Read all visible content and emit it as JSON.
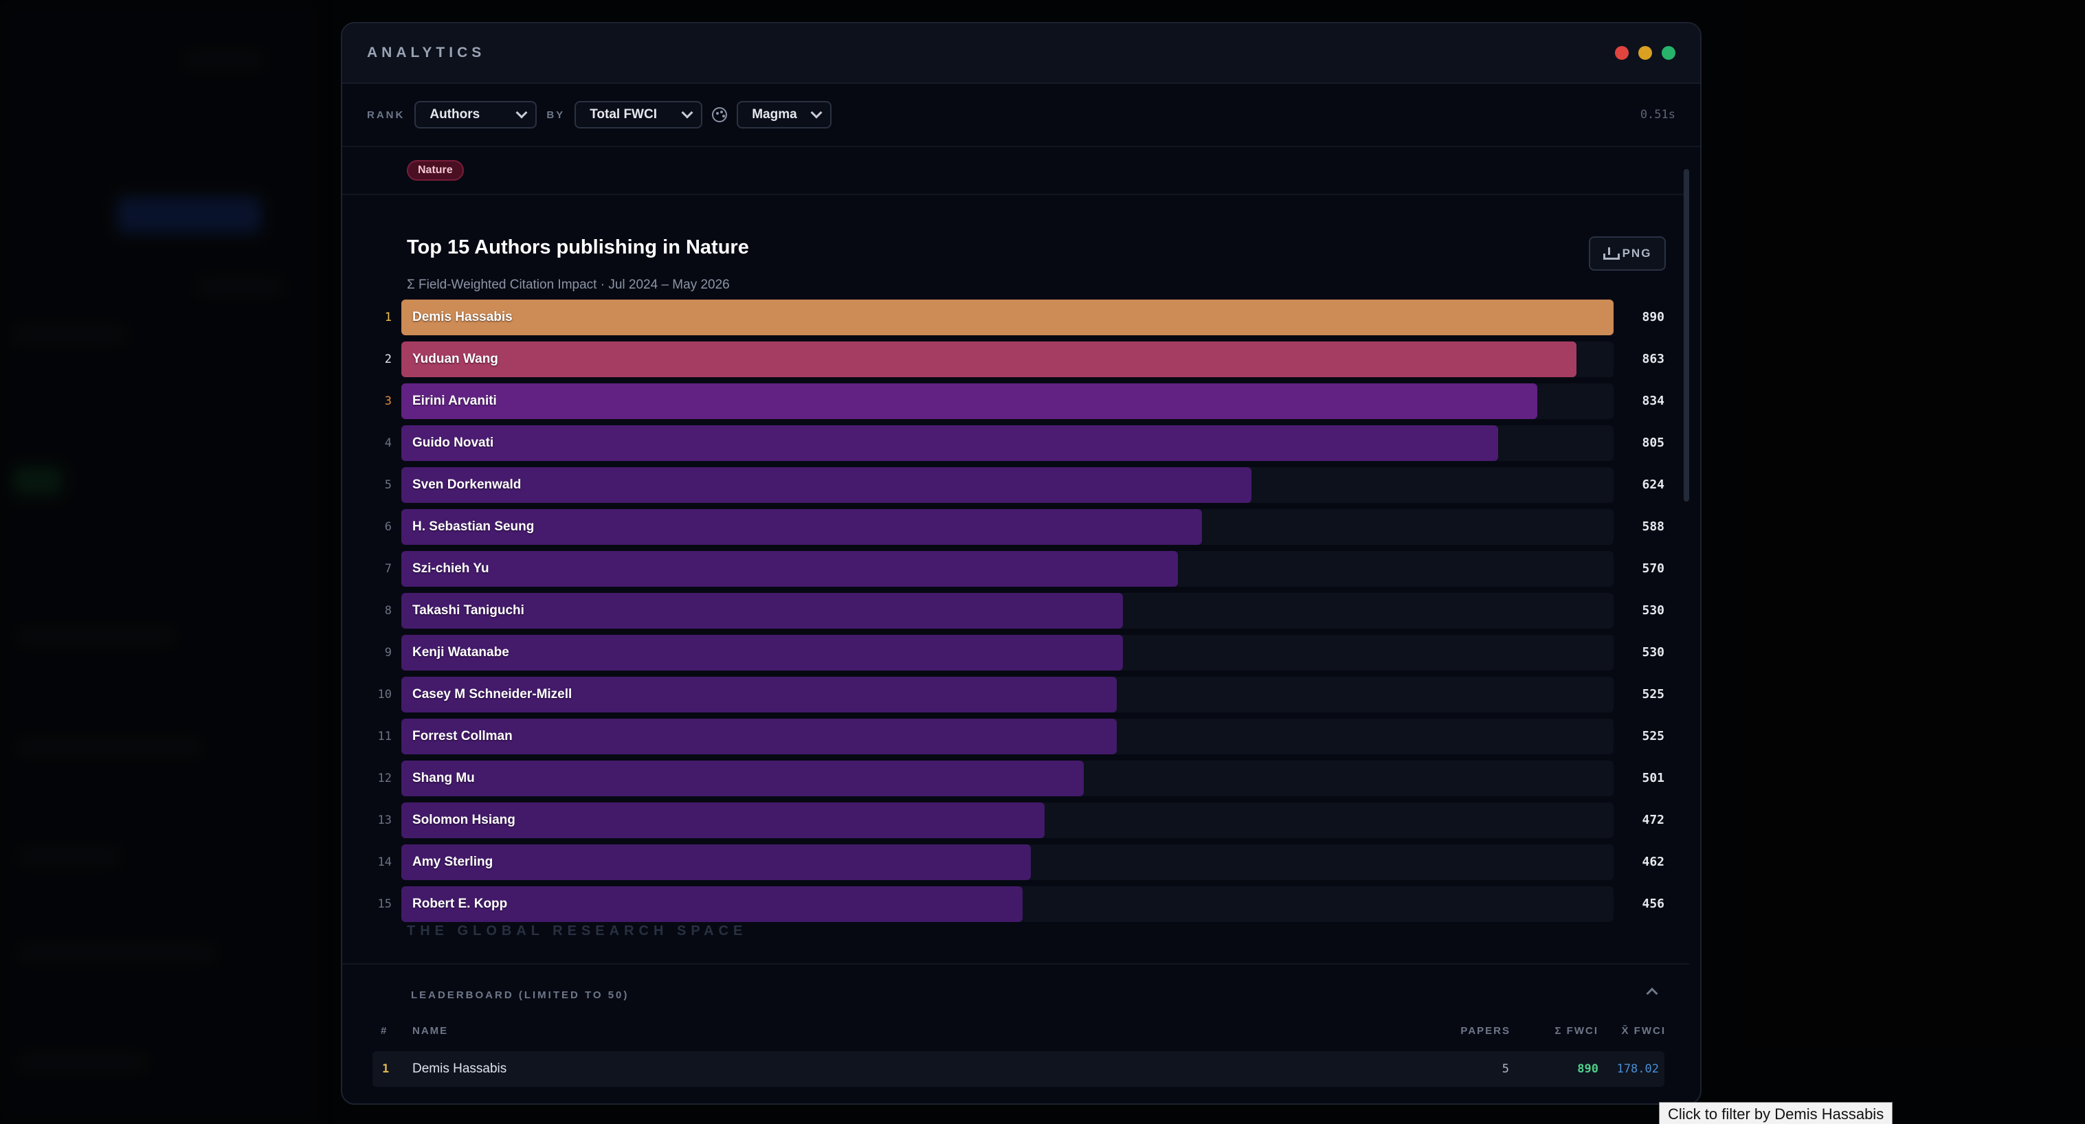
{
  "window": {
    "title": "ANALYTICS",
    "controls": [
      {
        "name": "close",
        "color": "#e0443e"
      },
      {
        "name": "minimize",
        "color": "#d9a021"
      },
      {
        "name": "maximize",
        "color": "#27b36b"
      }
    ]
  },
  "toolbar": {
    "rank_label": "RANK",
    "rank_value": "Authors",
    "by_label": "BY",
    "metric_value": "Total FWCI",
    "palette_value": "Magma",
    "timing": "0.51s"
  },
  "filter_tag": "Nature",
  "export_label": "PNG",
  "chart_data": {
    "type": "bar",
    "orientation": "horizontal",
    "title": "Top 15 Authors publishing in Nature",
    "subtitle": "Σ Field-Weighted Citation Impact · Jul 2024 – May 2026",
    "categories": [
      "Demis Hassabis",
      "Yuduan Wang",
      "Eirini Arvaniti",
      "Guido Novati",
      "Sven Dorkenwald",
      "H. Sebastian Seung",
      "Szi-chieh Yu",
      "Takashi Taniguchi",
      "Kenji Watanabe",
      "Casey M Schneider-Mizell",
      "Forrest Collman",
      "Shang Mu",
      "Solomon Hsiang",
      "Amy Sterling",
      "Robert E. Kopp"
    ],
    "ranks": [
      "1",
      "2",
      "3",
      "4",
      "5",
      "6",
      "7",
      "8",
      "9",
      "10",
      "11",
      "12",
      "13",
      "14",
      "15"
    ],
    "values": [
      890,
      863,
      834,
      805,
      624,
      588,
      570,
      530,
      530,
      525,
      525,
      501,
      472,
      462,
      456
    ],
    "value_labels": [
      "890",
      "863",
      "834",
      "805",
      "624",
      "588",
      "570",
      "530",
      "530",
      "525",
      "525",
      "501",
      "472",
      "462",
      "456"
    ],
    "colors": [
      "#cd8b55",
      "#a53c62",
      "#612283",
      "#4c1c72",
      "#461b6d",
      "#461b6d",
      "#461b6d",
      "#441a6b",
      "#441a6b",
      "#441a6b",
      "#441a6b",
      "#441a6b",
      "#431a6a",
      "#431a6a",
      "#431a6a"
    ],
    "rank_colors": [
      "#f0c14b",
      "#e6e8ee",
      "#e08a3c",
      "#6b7385",
      "#6b7385",
      "#6b7385",
      "#6b7385",
      "#6b7385",
      "#6b7385",
      "#6b7385",
      "#6b7385",
      "#6b7385",
      "#6b7385",
      "#6b7385",
      "#6b7385"
    ],
    "xlim": [
      0,
      890
    ],
    "grid": false,
    "legend": "none"
  },
  "watermark": "THE GLOBAL RESEARCH SPACE",
  "leaderboard": {
    "header": "LEADERBOARD (LIMITED TO 50)",
    "columns": {
      "rank": "#",
      "name": "NAME",
      "papers": "PAPERS",
      "total_fwci": "Σ FWCI",
      "mean_fwci": "X̄ FWCI"
    },
    "rows": [
      {
        "rank": "1",
        "name": "Demis Hassabis",
        "papers": "5",
        "total_fwci": "890",
        "mean_fwci": "178.02"
      }
    ]
  },
  "tooltip": "Click to filter by Demis Hassabis"
}
